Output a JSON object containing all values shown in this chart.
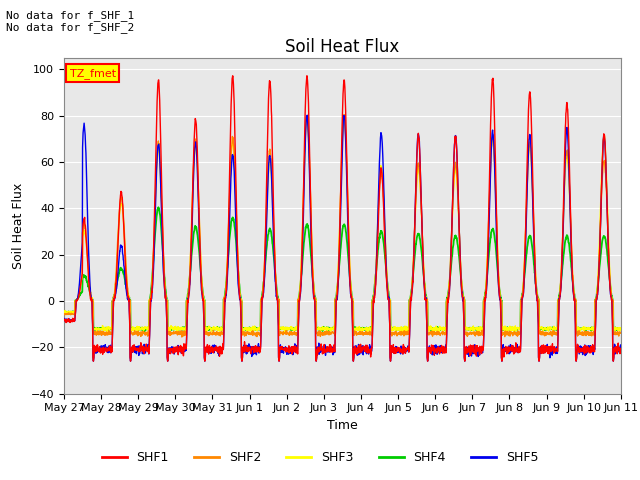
{
  "title": "Soil Heat Flux",
  "xlabel": "Time",
  "ylabel": "Soil Heat Flux",
  "ylim": [
    -40,
    105
  ],
  "yticks": [
    -40,
    -20,
    0,
    20,
    40,
    60,
    80,
    100
  ],
  "background_color": "#ffffff",
  "plot_bg_color": "#e8e8e8",
  "annotation_text": "No data for f_SHF_1\nNo data for f_SHF_2",
  "tz_label": "TZ_fmet",
  "colors": {
    "SHF1": "#ff0000",
    "SHF2": "#ff8800",
    "SHF3": "#ffff00",
    "SHF4": "#00cc00",
    "SHF5": "#0000ee"
  },
  "n_days": 15,
  "xtick_labels": [
    "May 27",
    "May 28",
    "May 29",
    "May 30",
    "May 31",
    "Jun 1",
    "Jun 2",
    "Jun 3",
    "Jun 4",
    "Jun 5",
    "Jun 6",
    "Jun 7",
    "Jun 8",
    "Jun 9",
    "Jun 10",
    "Jun 11"
  ],
  "grid_color": "#ffffff",
  "linewidth": 1.0,
  "figsize": [
    6.4,
    4.8
  ],
  "dpi": 100
}
